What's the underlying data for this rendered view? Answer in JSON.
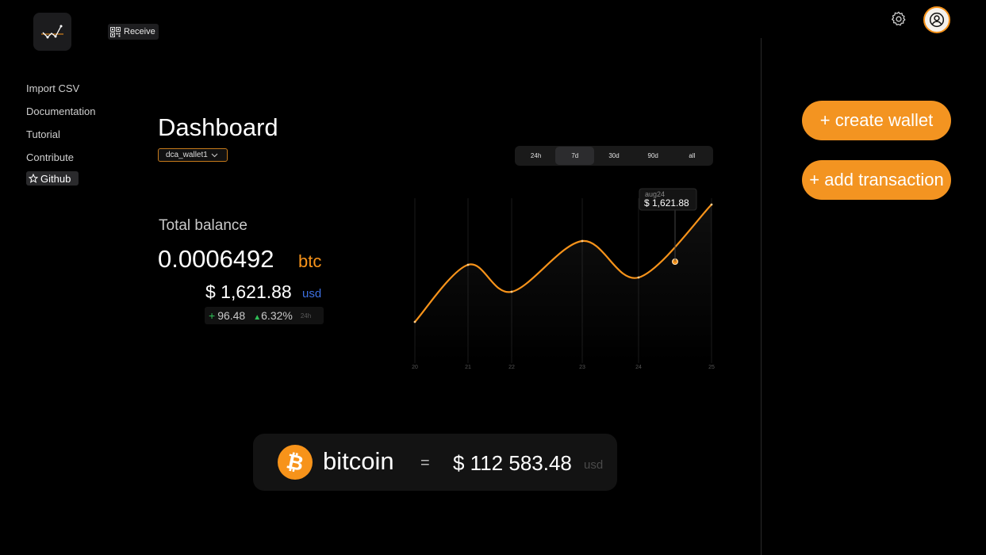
{
  "header": {
    "receive_label": "Receive"
  },
  "nav": {
    "items": [
      {
        "label": "Import CSV"
      },
      {
        "label": "Documentation"
      },
      {
        "label": "Tutorial"
      },
      {
        "label": "Contribute"
      }
    ],
    "github_label": "Github"
  },
  "main": {
    "title": "Dashboard",
    "wallet": "dca_wallet1",
    "ranges": [
      "24h",
      "7d",
      "30d",
      "90d",
      "all"
    ],
    "active_range": "7d",
    "total_label": "Total balance",
    "btc_amount": "0.0006492",
    "btc_unit": "btc",
    "usd_amount": "$ 1,621.88",
    "usd_unit": "usd",
    "change_abs": "96.48",
    "change_pct": "6.32%",
    "change_period": "24h"
  },
  "chart_data": {
    "type": "line",
    "x": [
      "20",
      "21",
      "22",
      "23",
      "24",
      "25"
    ],
    "points": [
      {
        "x": 20.0,
        "y": 0.22
      },
      {
        "x": 21.0,
        "y": 0.58
      },
      {
        "x": 22.0,
        "y": 0.41
      },
      {
        "x": 23.0,
        "y": 0.73
      },
      {
        "x": 24.0,
        "y": 0.5
      },
      {
        "x": 24.5,
        "y": 0.6
      },
      {
        "x": 25.0,
        "y": 0.96
      }
    ],
    "tooltip": {
      "date": "aug24",
      "value": "$ 1,621.88",
      "x": 24.5
    },
    "color": "#f7931a"
  },
  "actions": {
    "create_wallet": "+ create wallet",
    "add_transaction": "+ add transaction"
  },
  "price": {
    "coin": "bitcoin",
    "equals": "=",
    "value": "$ 112 583.48",
    "unit": "usd"
  },
  "colors": {
    "accent": "#f7931a",
    "positive": "#2fbf56",
    "usd": "#3d6fe0"
  }
}
